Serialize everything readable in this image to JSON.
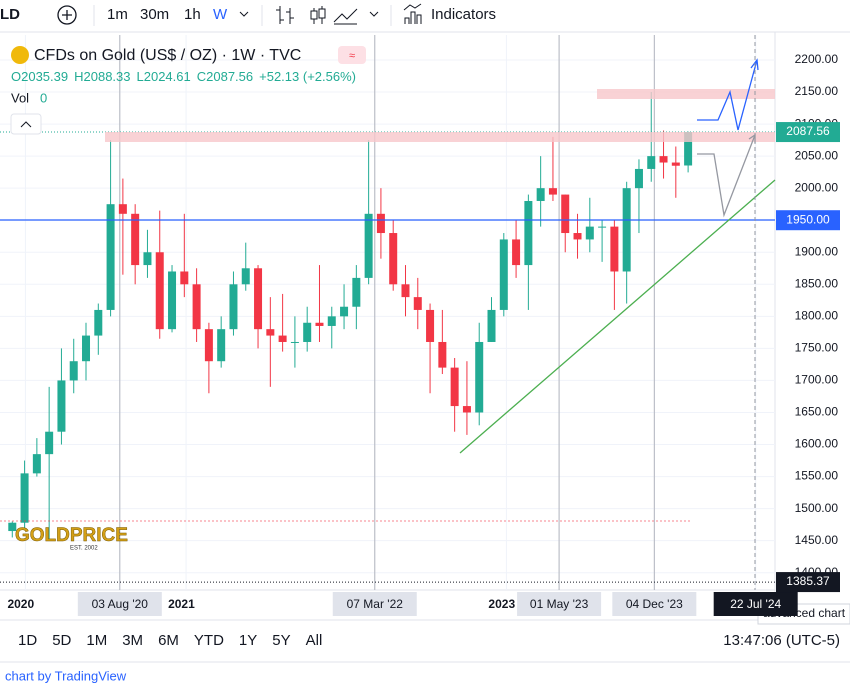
{
  "toolbar": {
    "symbol": "LD",
    "intervals": [
      "1m",
      "30m",
      "1h",
      "W"
    ],
    "indicators": "Indicators"
  },
  "chart_data": {
    "type": "candlestick",
    "title": "CFDs on Gold (US$ / OZ) · 1W · TVC",
    "legend_values": [
      "O2035.39",
      "H2088.33",
      "L2024.61",
      "C2087.56",
      "+52.13 (+2.56%)"
    ],
    "volume_label": "Vol",
    "volume_value": "0",
    "x": [
      "2019-12-02",
      "2019-12-30",
      "2020-01-27",
      "2020-02-24",
      "2020-03-23",
      "2020-04-20",
      "2020-05-18",
      "2020-06-15",
      "2020-07-13",
      "2020-08-10",
      "2020-09-07",
      "2020-10-05",
      "2020-11-02",
      "2020-11-30",
      "2020-12-28",
      "2021-01-25",
      "2021-02-22",
      "2021-03-22",
      "2021-04-19",
      "2021-05-17",
      "2021-06-14",
      "2021-07-12",
      "2021-08-09",
      "2021-09-06",
      "2021-10-04",
      "2021-11-01",
      "2021-11-29",
      "2021-12-27",
      "2022-01-24",
      "2022-02-21",
      "2022-03-21",
      "2022-04-18",
      "2022-05-16",
      "2022-06-13",
      "2022-07-11",
      "2022-08-08",
      "2022-09-05",
      "2022-10-03",
      "2022-10-31",
      "2022-11-28",
      "2022-12-26",
      "2023-01-23",
      "2023-02-20",
      "2023-03-20",
      "2023-04-17",
      "2023-05-15",
      "2023-06-12",
      "2023-07-10",
      "2023-08-07",
      "2023-09-04",
      "2023-10-02",
      "2023-10-30",
      "2023-11-27",
      "2023-12-25",
      "2024-01-22",
      "2024-02-19"
    ],
    "open": [
      1465,
      1478,
      1555,
      1585,
      1620,
      1700,
      1730,
      1770,
      1810,
      1975,
      1960,
      1880,
      1900,
      1780,
      1870,
      1850,
      1780,
      1730,
      1780,
      1850,
      1875,
      1780,
      1770,
      1760,
      1760,
      1790,
      1785,
      1800,
      1815,
      1860,
      1960,
      1930,
      1850,
      1830,
      1810,
      1760,
      1720,
      1660,
      1650,
      1760,
      1810,
      1920,
      1880,
      1980,
      2000,
      1990,
      1930,
      1920,
      1940,
      1940,
      1870,
      2000,
      2030,
      2050,
      2040,
      2035.39
    ],
    "high": [
      1480,
      1575,
      1610,
      1690,
      1750,
      1765,
      1790,
      1820,
      2075,
      2015,
      1975,
      1935,
      1965,
      1880,
      1960,
      1875,
      1790,
      1800,
      1870,
      1915,
      1880,
      1830,
      1835,
      1800,
      1815,
      1880,
      1815,
      1850,
      1880,
      2075,
      2000,
      1950,
      1880,
      1860,
      1820,
      1810,
      1735,
      1730,
      1790,
      1830,
      1930,
      1950,
      1990,
      2050,
      2080,
      1990,
      1960,
      1985,
      1950,
      1950,
      2010,
      2045,
      2150,
      2090,
      2065,
      2088.33
    ],
    "low": [
      1455,
      1470,
      1550,
      1450,
      1600,
      1680,
      1700,
      1740,
      1800,
      1865,
      1850,
      1860,
      1765,
      1775,
      1830,
      1760,
      1680,
      1720,
      1770,
      1840,
      1750,
      1690,
      1745,
      1720,
      1745,
      1760,
      1750,
      1780,
      1780,
      1850,
      1890,
      1840,
      1800,
      1780,
      1680,
      1710,
      1620,
      1615,
      1630,
      1760,
      1800,
      1860,
      1810,
      1940,
      1980,
      1900,
      1890,
      1900,
      1885,
      1810,
      1820,
      1930,
      2010,
      2015,
      1985,
      2024.61
    ],
    "close": [
      1478,
      1555,
      1585,
      1620,
      1700,
      1730,
      1770,
      1810,
      1975,
      1960,
      1880,
      1900,
      1780,
      1870,
      1850,
      1780,
      1730,
      1780,
      1850,
      1875,
      1780,
      1770,
      1760,
      1760,
      1790,
      1785,
      1800,
      1815,
      1860,
      1960,
      1930,
      1850,
      1830,
      1810,
      1760,
      1720,
      1660,
      1650,
      1760,
      1810,
      1920,
      1880,
      1980,
      2000,
      1990,
      1930,
      1920,
      1940,
      1940,
      1870,
      2000,
      2030,
      2050,
      2040,
      2035,
      2087.56
    ],
    "up_color": "#22ab94",
    "down_color": "#f23645",
    "xlim": [
      "2019-11-04",
      "2024-09-04"
    ],
    "xticks": [
      {
        "value": "2020-01-01",
        "label": "2020"
      },
      {
        "value": "2020-08-03",
        "label": "03 Aug '20"
      },
      {
        "value": "2021-01-01",
        "label": "2021"
      },
      {
        "value": "2022-03-07",
        "label": "07 Mar '22"
      },
      {
        "value": "2023-01-01",
        "label": "2023"
      },
      {
        "value": "2023-05-01",
        "label": "01 May '23"
      },
      {
        "value": "2023-12-04",
        "label": "04 Dec '23"
      },
      {
        "value": "2024-07-22",
        "label": "22 Jul '24"
      }
    ],
    "ylim": [
      1373,
      2239
    ],
    "yticks": [
      {
        "value": 1400,
        "label": "1400.00"
      },
      {
        "value": 1450,
        "label": "1450.00"
      },
      {
        "value": 1500,
        "label": "1500.00"
      },
      {
        "value": 1550,
        "label": "1550.00"
      },
      {
        "value": 1600,
        "label": "1600.00"
      },
      {
        "value": 1650,
        "label": "1650.00"
      },
      {
        "value": 1700,
        "label": "1700.00"
      },
      {
        "value": 1750,
        "label": "1750.00"
      },
      {
        "value": 1800,
        "label": "1800.00"
      },
      {
        "value": 1850,
        "label": "1850.00"
      },
      {
        "value": 1900,
        "label": "1900.00"
      },
      {
        "value": 1950,
        "label": "1950.00"
      },
      {
        "value": 2000,
        "label": "2000.00"
      },
      {
        "value": 2050,
        "label": "2050.00"
      },
      {
        "value": 2100,
        "label": "2100.00"
      },
      {
        "value": 2150,
        "label": "2150.00"
      },
      {
        "value": 2200,
        "label": "2200.00"
      }
    ],
    "price_labels": [
      {
        "value": 2087.56,
        "label": "2087.56",
        "color": "#22ab94"
      },
      {
        "value": 1950,
        "label": "1950.00",
        "color": "#2962ff"
      },
      {
        "value": 1385.37,
        "label": "1385.37",
        "color": "#131722"
      }
    ],
    "logo": "GOLDPRICE",
    "logo_sub": "EST. 2002"
  },
  "ranges": [
    "1D",
    "5D",
    "1M",
    "3M",
    "6M",
    "YTD",
    "1Y",
    "5Y",
    "All"
  ],
  "clock": "13:47:06 (UTC-5)",
  "tooltip": "advanced chart",
  "footer": "chart by TradingView"
}
